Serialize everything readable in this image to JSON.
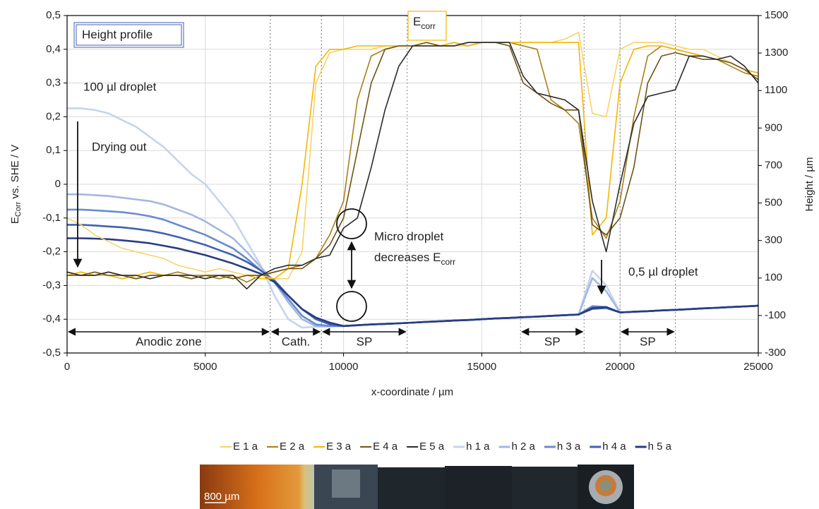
{
  "chart_data": {
    "type": "line",
    "y_label": {
      "main": "E",
      "sub": "Corr",
      "rest": " vs. SHE / V"
    },
    "y2_label": "Height / µm",
    "x_label": "x-coordinate / µm",
    "xlim": [
      0,
      25000
    ],
    "xticks": [
      0,
      5000,
      10000,
      15000,
      20000,
      25000
    ],
    "ylim": [
      -0.5,
      0.5
    ],
    "yticks": [
      {
        "value": 0.5,
        "label": "0,5"
      },
      {
        "value": 0.4,
        "label": "0,4"
      },
      {
        "value": 0.3,
        "label": "0,3"
      },
      {
        "value": 0.2,
        "label": "0,2"
      },
      {
        "value": 0.1,
        "label": "0,1"
      },
      0,
      {
        "value": -0.1,
        "label": "-0,1"
      },
      {
        "value": -0.2,
        "label": "-0,2"
      },
      {
        "value": -0.3,
        "label": "-0,3"
      },
      {
        "value": -0.4,
        "label": "-0,4"
      },
      {
        "value": -0.5,
        "label": "-0,5"
      }
    ],
    "y2lim": [
      -300,
      1500
    ],
    "y2ticks": [
      1500,
      1300,
      1100,
      900,
      700,
      500,
      300,
      100,
      -100,
      -300
    ],
    "grid": true,
    "legend": "bottom",
    "x": [
      0,
      500,
      1000,
      1500,
      2000,
      2500,
      3000,
      3500,
      4000,
      4500,
      5000,
      5500,
      6000,
      6500,
      7000,
      7500,
      8000,
      8500,
      9000,
      9500,
      10000,
      10500,
      11000,
      11500,
      12000,
      12500,
      13000,
      13500,
      14000,
      14500,
      15000,
      15500,
      16000,
      16500,
      17000,
      17500,
      18000,
      18500,
      19000,
      19500,
      20000,
      20500,
      21000,
      21500,
      22000,
      22500,
      23000,
      23500,
      24000,
      24500,
      25000
    ],
    "series": [
      {
        "name": "E 1 a",
        "color": "#f7d36b",
        "values": [
          -0.1,
          -0.12,
          -0.15,
          -0.17,
          -0.19,
          -0.2,
          -0.21,
          -0.22,
          -0.24,
          -0.25,
          -0.26,
          -0.25,
          -0.26,
          -0.27,
          -0.27,
          -0.28,
          -0.28,
          -0.2,
          0.3,
          0.39,
          0.4,
          0.4,
          0.4,
          0.41,
          0.41,
          0.41,
          0.41,
          0.41,
          0.41,
          0.41,
          0.42,
          0.42,
          0.42,
          0.42,
          0.42,
          0.42,
          0.43,
          0.45,
          0.21,
          0.2,
          0.4,
          0.42,
          0.42,
          0.42,
          0.41,
          0.4,
          0.4,
          0.38,
          0.36,
          0.34,
          0.33
        ]
      },
      {
        "name": "E 2 a",
        "color": "#a8801c",
        "values": [
          -0.26,
          -0.27,
          -0.27,
          -0.26,
          -0.27,
          -0.28,
          -0.27,
          -0.27,
          -0.26,
          -0.27,
          -0.27,
          -0.28,
          -0.27,
          -0.29,
          -0.27,
          -0.26,
          -0.25,
          -0.24,
          -0.22,
          -0.15,
          -0.05,
          0.25,
          0.38,
          0.4,
          0.41,
          0.41,
          0.41,
          0.41,
          0.42,
          0.41,
          0.42,
          0.42,
          0.42,
          0.41,
          0.4,
          0.25,
          0.22,
          0.18,
          -0.1,
          -0.16,
          -0.05,
          0.2,
          0.38,
          0.41,
          0.4,
          0.39,
          0.38,
          0.37,
          0.35,
          0.33,
          0.32
        ]
      },
      {
        "name": "E 3 a",
        "color": "#f2b705",
        "values": [
          -0.27,
          -0.26,
          -0.27,
          -0.27,
          -0.28,
          -0.27,
          -0.26,
          -0.27,
          -0.27,
          -0.28,
          -0.27,
          -0.27,
          -0.28,
          -0.27,
          -0.28,
          -0.28,
          -0.25,
          0.0,
          0.35,
          0.4,
          0.4,
          0.41,
          0.41,
          0.41,
          0.41,
          0.41,
          0.41,
          0.41,
          0.42,
          0.41,
          0.42,
          0.42,
          0.42,
          0.42,
          0.42,
          0.42,
          0.42,
          0.42,
          -0.15,
          -0.1,
          0.3,
          0.4,
          0.41,
          0.41,
          0.4,
          0.39,
          0.38,
          0.37,
          0.36,
          0.34,
          0.33
        ]
      },
      {
        "name": "E 4 a",
        "color": "#6f5414",
        "values": [
          -0.27,
          -0.27,
          -0.26,
          -0.27,
          -0.27,
          -0.28,
          -0.27,
          -0.27,
          -0.27,
          -0.28,
          -0.27,
          -0.27,
          -0.28,
          -0.27,
          -0.27,
          -0.26,
          -0.25,
          -0.25,
          -0.22,
          -0.18,
          -0.1,
          0.1,
          0.3,
          0.4,
          0.41,
          0.41,
          0.42,
          0.41,
          0.41,
          0.42,
          0.42,
          0.42,
          0.41,
          0.3,
          0.27,
          0.24,
          0.22,
          0.22,
          -0.12,
          -0.15,
          -0.1,
          0.05,
          0.3,
          0.38,
          0.39,
          0.38,
          0.37,
          0.37,
          0.36,
          0.34,
          0.31
        ]
      },
      {
        "name": "E 5 a",
        "color": "#2b2b2b",
        "values": [
          -0.26,
          -0.27,
          -0.27,
          -0.26,
          -0.27,
          -0.27,
          -0.28,
          -0.27,
          -0.27,
          -0.27,
          -0.28,
          -0.27,
          -0.27,
          -0.31,
          -0.27,
          -0.25,
          -0.24,
          -0.24,
          -0.22,
          -0.21,
          -0.13,
          -0.1,
          0.05,
          0.22,
          0.35,
          0.41,
          0.41,
          0.41,
          0.41,
          0.42,
          0.42,
          0.42,
          0.42,
          0.32,
          0.27,
          0.26,
          0.25,
          0.22,
          -0.05,
          -0.2,
          0.0,
          0.18,
          0.26,
          0.27,
          0.28,
          0.38,
          0.38,
          0.37,
          0.38,
          0.35,
          0.3
        ]
      },
      {
        "name": "h 1 a",
        "color": "#c7d4ee",
        "axis": "y2",
        "values": [
          1005,
          1005,
          996,
          978,
          942,
          906,
          852,
          798,
          726,
          654,
          600,
          510,
          420,
          294,
          168,
          6,
          -120,
          -165,
          -160,
          -158,
          -156,
          -152,
          -148,
          -145,
          -142,
          -138,
          -134,
          -131,
          -127,
          -124,
          -120,
          -116,
          -113,
          -109,
          -106,
          -102,
          -98,
          -95,
          140,
          60,
          -84,
          -80,
          -77,
          -73,
          -70,
          -66,
          -62,
          -59,
          -55,
          -52,
          -48
        ]
      },
      {
        "name": "h 2 a",
        "color": "#a3b8e2",
        "axis": "y2",
        "values": [
          546,
          546,
          542,
          537,
          528,
          519,
          510,
          492,
          465,
          438,
          402,
          357,
          312,
          240,
          159,
          78,
          -30,
          -120,
          -156,
          -156,
          -156,
          -152,
          -148,
          -145,
          -142,
          -138,
          -134,
          -131,
          -127,
          -124,
          -120,
          -116,
          -113,
          -109,
          -106,
          -102,
          -98,
          -95,
          100,
          30,
          -84,
          -80,
          -77,
          -73,
          -70,
          -66,
          -62,
          -59,
          -55,
          -52,
          -48
        ]
      },
      {
        "name": "h 3 a",
        "color": "#6a8bcf",
        "axis": "y2",
        "values": [
          465,
          465,
          461,
          456,
          451,
          442,
          429,
          411,
          384,
          357,
          330,
          294,
          258,
          204,
          141,
          78,
          -12,
          -102,
          -147,
          -156,
          -156,
          -152,
          -148,
          -145,
          -142,
          -138,
          -134,
          -131,
          -127,
          -124,
          -120,
          -116,
          -113,
          -109,
          -106,
          -102,
          -98,
          -95,
          -50,
          -55,
          -84,
          -80,
          -77,
          -73,
          -70,
          -66,
          -62,
          -59,
          -55,
          -52,
          -48
        ]
      },
      {
        "name": "h 4 a",
        "color": "#3f62b0",
        "axis": "y2",
        "values": [
          384,
          384,
          380,
          375,
          370,
          362,
          352,
          337,
          319,
          298,
          276,
          249,
          222,
          186,
          141,
          87,
          6,
          -66,
          -120,
          -147,
          -156,
          -152,
          -148,
          -145,
          -142,
          -138,
          -134,
          -131,
          -127,
          -124,
          -120,
          -116,
          -113,
          -109,
          -106,
          -102,
          -98,
          -95,
          -65,
          -60,
          -84,
          -80,
          -77,
          -73,
          -70,
          -66,
          -62,
          -59,
          -55,
          -52,
          -48
        ]
      },
      {
        "name": "h 5 a",
        "color": "#283d82",
        "axis": "y2",
        "values": [
          312,
          312,
          310,
          307,
          301,
          294,
          285,
          272,
          258,
          240,
          222,
          200,
          177,
          150,
          123,
          78,
          6,
          -66,
          -111,
          -138,
          -156,
          -152,
          -148,
          -145,
          -142,
          -138,
          -134,
          -131,
          -127,
          -124,
          -120,
          -116,
          -113,
          -109,
          -106,
          -102,
          -98,
          -95,
          -60,
          -55,
          -84,
          -80,
          -77,
          -73,
          -70,
          -66,
          -62,
          -59,
          -55,
          -52,
          -48
        ]
      }
    ],
    "zones": [
      {
        "label": "Anodic zone",
        "start": 0,
        "end": 7350
      },
      {
        "label": "Cath.",
        "start": 7350,
        "end": 9200
      },
      {
        "label": "SP",
        "start": 9200,
        "end": 12300
      },
      {
        "label": "SP",
        "start": 16400,
        "end": 18700
      },
      {
        "label": "SP",
        "start": 20000,
        "end": 22000
      }
    ],
    "annotations": {
      "height_profile": "Height profile",
      "ecorr": {
        "main": "E",
        "sub": "corr"
      },
      "droplet_100": "100 µl droplet",
      "drying_out": "Drying out",
      "micro_1": "Micro droplet",
      "micro_2": {
        "main": "decreases E",
        "sub": "corr"
      },
      "droplet_05": "0,5 µl droplet"
    },
    "scale_bar": "800 µm"
  }
}
